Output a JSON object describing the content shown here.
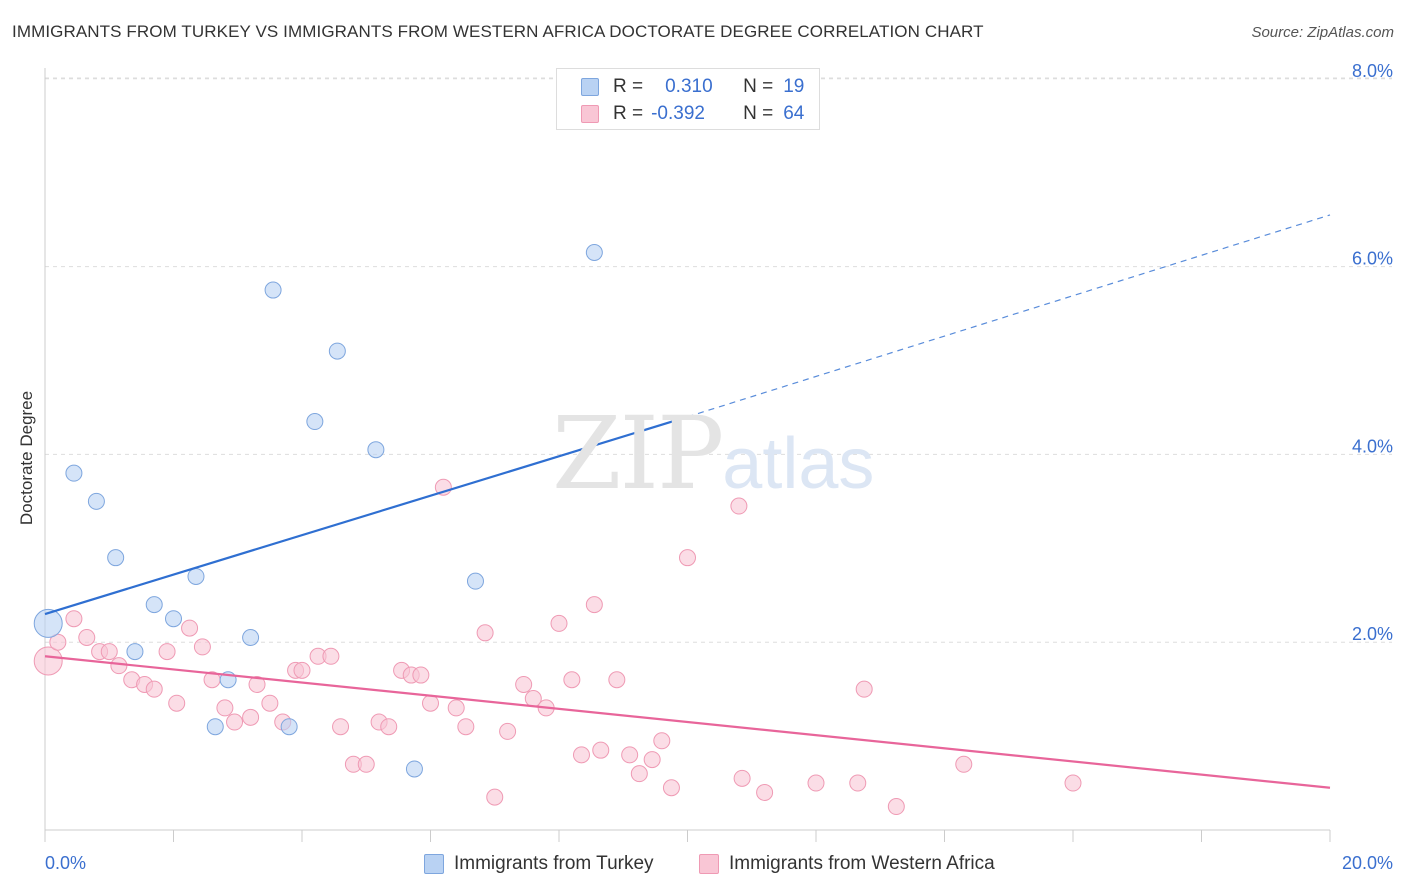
{
  "header": {
    "title": "IMMIGRANTS FROM TURKEY VS IMMIGRANTS FROM WESTERN AFRICA DOCTORATE DEGREE CORRELATION CHART",
    "source": "Source: ZipAtlas.com"
  },
  "watermark": {
    "zip": "ZIP",
    "atlas": "atlas"
  },
  "legend": {
    "turkey": {
      "r_label": "R =",
      "r_value": "0.310",
      "n_label": "N =",
      "n_value": "19"
    },
    "wafrica": {
      "r_label": "R =",
      "r_value": "-0.392",
      "n_label": "N =",
      "n_value": "64"
    }
  },
  "bottom_legend": {
    "turkey_label": "Immigrants from Turkey",
    "wafrica_label": "Immigrants from Western Africa"
  },
  "colors": {
    "turkey_fill": "#b9d2f3",
    "turkey_stroke": "#7ea6de",
    "turkey_line": "#2f6fd1",
    "wafrica_fill": "#f9c6d5",
    "wafrica_stroke": "#ef9ab4",
    "wafrica_line": "#e8659a",
    "grid": "#dddddd",
    "tick_label": "#3a6fcf"
  },
  "chart_data": {
    "type": "scatter",
    "title": "IMMIGRANTS FROM TURKEY VS IMMIGRANTS FROM WESTERN AFRICA DOCTORATE DEGREE CORRELATION CHART",
    "xlabel": "",
    "ylabel": "Doctorate Degree",
    "xlim": [
      0,
      20
    ],
    "ylim": [
      0,
      8.2
    ],
    "x_tick_labels": [
      "0.0%",
      "20.0%"
    ],
    "y_ticks": [
      2,
      4,
      6,
      8
    ],
    "y_tick_labels": [
      "2.0%",
      "4.0%",
      "6.0%",
      "8.0%"
    ],
    "grid": true,
    "legend_position": "top-center",
    "series": [
      {
        "name": "Immigrants from Turkey",
        "R": 0.31,
        "N": 19,
        "points": [
          [
            0.05,
            2.2
          ],
          [
            0.45,
            3.8
          ],
          [
            0.8,
            3.5
          ],
          [
            1.1,
            2.9
          ],
          [
            1.4,
            1.9
          ],
          [
            1.7,
            2.4
          ],
          [
            2.0,
            2.25
          ],
          [
            2.35,
            2.7
          ],
          [
            2.65,
            1.1
          ],
          [
            2.85,
            1.6
          ],
          [
            3.2,
            2.05
          ],
          [
            3.55,
            5.75
          ],
          [
            3.8,
            1.1
          ],
          [
            4.2,
            4.35
          ],
          [
            4.55,
            5.1
          ],
          [
            5.15,
            4.05
          ],
          [
            5.75,
            0.65
          ],
          [
            6.7,
            2.65
          ],
          [
            8.55,
            6.15
          ]
        ],
        "trend_solid": [
          [
            0,
            2.3
          ],
          [
            10,
            4.4
          ]
        ],
        "trend_dashed": [
          [
            10,
            4.4
          ],
          [
            20,
            6.55
          ]
        ]
      },
      {
        "name": "Immigrants from Western Africa",
        "R": -0.392,
        "N": 64,
        "points": [
          [
            0.05,
            1.8
          ],
          [
            0.2,
            2.0
          ],
          [
            0.45,
            2.25
          ],
          [
            0.65,
            2.05
          ],
          [
            0.85,
            1.9
          ],
          [
            1.0,
            1.9
          ],
          [
            1.15,
            1.75
          ],
          [
            1.35,
            1.6
          ],
          [
            1.55,
            1.55
          ],
          [
            1.7,
            1.5
          ],
          [
            1.9,
            1.9
          ],
          [
            2.05,
            1.35
          ],
          [
            2.25,
            2.15
          ],
          [
            2.45,
            1.95
          ],
          [
            2.6,
            1.6
          ],
          [
            2.8,
            1.3
          ],
          [
            2.95,
            1.15
          ],
          [
            3.2,
            1.2
          ],
          [
            3.3,
            1.55
          ],
          [
            3.5,
            1.35
          ],
          [
            3.7,
            1.15
          ],
          [
            3.9,
            1.7
          ],
          [
            4.0,
            1.7
          ],
          [
            4.25,
            1.85
          ],
          [
            4.45,
            1.85
          ],
          [
            4.6,
            1.1
          ],
          [
            4.8,
            0.7
          ],
          [
            5.0,
            0.7
          ],
          [
            5.2,
            1.15
          ],
          [
            5.35,
            1.1
          ],
          [
            5.55,
            1.7
          ],
          [
            5.7,
            1.65
          ],
          [
            5.85,
            1.65
          ],
          [
            6.0,
            1.35
          ],
          [
            6.2,
            3.65
          ],
          [
            6.4,
            1.3
          ],
          [
            6.55,
            1.1
          ],
          [
            6.85,
            2.1
          ],
          [
            7.0,
            0.35
          ],
          [
            7.2,
            1.05
          ],
          [
            7.45,
            1.55
          ],
          [
            7.6,
            1.4
          ],
          [
            7.8,
            1.3
          ],
          [
            8.0,
            2.2
          ],
          [
            8.2,
            1.6
          ],
          [
            8.35,
            0.8
          ],
          [
            8.55,
            2.4
          ],
          [
            8.65,
            0.85
          ],
          [
            8.9,
            1.6
          ],
          [
            9.1,
            0.8
          ],
          [
            9.25,
            0.6
          ],
          [
            9.45,
            0.75
          ],
          [
            9.6,
            0.95
          ],
          [
            9.75,
            0.45
          ],
          [
            10.0,
            2.9
          ],
          [
            10.8,
            3.45
          ],
          [
            10.85,
            0.55
          ],
          [
            11.2,
            0.4
          ],
          [
            12.0,
            0.5
          ],
          [
            12.65,
            0.5
          ],
          [
            12.75,
            1.5
          ],
          [
            13.25,
            0.25
          ],
          [
            14.3,
            0.7
          ],
          [
            16.0,
            0.5
          ]
        ],
        "trend_solid": [
          [
            0,
            1.85
          ],
          [
            20,
            0.45
          ]
        ]
      }
    ]
  }
}
